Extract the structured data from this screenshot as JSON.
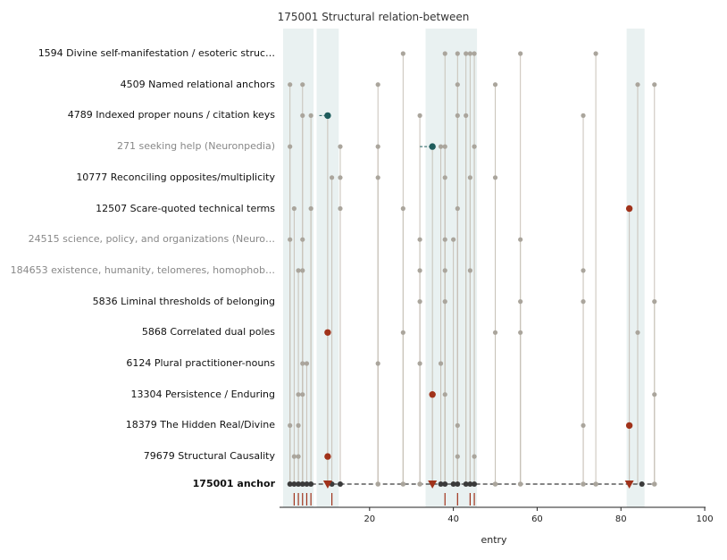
{
  "title": "175001  Structural relation-between",
  "colors": {
    "band": "#e9f1f1",
    "dot": "#aaa59c",
    "line": "#c8c2b8",
    "anchor": "#3a3a3a",
    "teal": "#1e5c5c",
    "red": "#a0321a",
    "tick_red": "#a0321a"
  },
  "chart_data": {
    "type": "scatter",
    "title": "175001  Structural relation-between",
    "xlabel": "entry",
    "xlim": [
      0,
      100
    ],
    "xticks": [
      20,
      40,
      60,
      80,
      100
    ],
    "grid": false,
    "shaded_bands": [
      [
        0,
        6
      ],
      [
        8,
        12
      ],
      [
        34,
        45
      ],
      [
        82,
        85
      ]
    ],
    "rows": [
      {
        "label": "1594  Divine self-manifestation / esoteric struc…",
        "style": "normal",
        "points": [
          28,
          38,
          41,
          43,
          44,
          45,
          56,
          74
        ],
        "highlight": []
      },
      {
        "label": "4509  Named relational anchors",
        "style": "normal",
        "points": [
          1,
          4,
          22,
          41,
          50,
          84,
          88
        ],
        "highlight": []
      },
      {
        "label": "4789  Indexed proper nouns / citation keys",
        "style": "normal",
        "points": [
          4,
          6,
          32,
          41,
          43,
          71
        ],
        "highlight": [
          {
            "x": 10,
            "color": "teal",
            "from": 8
          }
        ]
      },
      {
        "label": "271  seeking help (Neuronpedia)",
        "style": "dim",
        "points": [
          1,
          13,
          22,
          37,
          38,
          45
        ],
        "highlight": [
          {
            "x": 35,
            "color": "teal",
            "from": 32
          }
        ]
      },
      {
        "label": "10777  Reconciling opposites/multiplicity",
        "style": "normal",
        "points": [
          11,
          13,
          22,
          38,
          44,
          50
        ],
        "highlight": []
      },
      {
        "label": "12507  Scare-quoted technical terms",
        "style": "normal",
        "points": [
          2,
          6,
          13,
          28,
          41
        ],
        "highlight": [
          {
            "x": 82,
            "color": "red"
          }
        ]
      },
      {
        "label": "24515  science, policy, and organizations (Neuro…",
        "style": "dim",
        "points": [
          1,
          4,
          32,
          38,
          40,
          56
        ],
        "highlight": []
      },
      {
        "label": "184653  existence, humanity, telomeres, homophob…",
        "style": "dim",
        "points": [
          3,
          4,
          32,
          38,
          44,
          71
        ],
        "highlight": []
      },
      {
        "label": "5836  Liminal thresholds of belonging",
        "style": "normal",
        "points": [
          32,
          38,
          56,
          71,
          88
        ],
        "highlight": []
      },
      {
        "label": "5868  Correlated dual poles",
        "style": "normal",
        "points": [
          28,
          50,
          56,
          84
        ],
        "highlight": [
          {
            "x": 10,
            "color": "red"
          }
        ]
      },
      {
        "label": "6124  Plural practitioner-nouns",
        "style": "normal",
        "points": [
          4,
          5,
          22,
          32,
          37
        ],
        "highlight": []
      },
      {
        "label": "13304  Persistence / Enduring",
        "style": "normal",
        "points": [
          3,
          4,
          38,
          88
        ],
        "highlight": [
          {
            "x": 35,
            "color": "red"
          }
        ]
      },
      {
        "label": "18379  The Hidden Real/Divine",
        "style": "normal",
        "points": [
          1,
          3,
          41,
          71
        ],
        "highlight": [
          {
            "x": 82,
            "color": "red"
          }
        ]
      },
      {
        "label": "79679  Structural Causality",
        "style": "normal",
        "points": [
          2,
          3,
          41,
          45
        ],
        "highlight": [
          {
            "x": 10,
            "color": "red"
          }
        ]
      }
    ],
    "anchor_row": {
      "label": "175001  anchor",
      "dark_points": [
        1,
        2,
        3,
        4,
        5,
        6,
        11,
        13,
        37,
        38,
        40,
        41,
        43,
        44,
        45,
        85
      ],
      "light_points": [
        22,
        28,
        32,
        50,
        56,
        71,
        74,
        88
      ],
      "triangles": [
        10,
        35,
        82
      ],
      "ticks": [
        2,
        3,
        4,
        5,
        6,
        11,
        38,
        41,
        44,
        45
      ]
    }
  }
}
